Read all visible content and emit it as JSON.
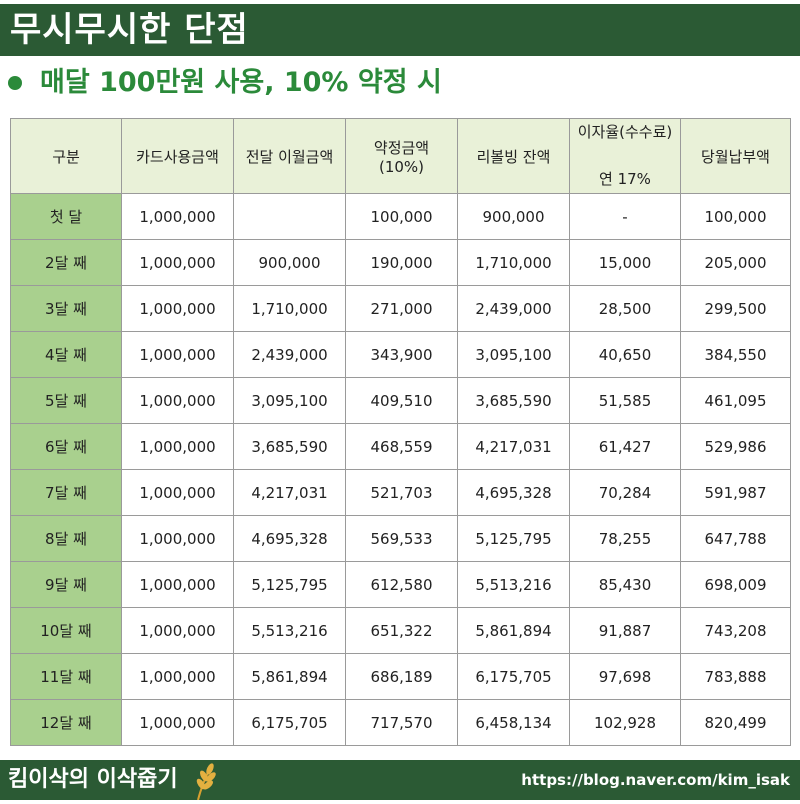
{
  "header": {
    "title": "무시무시한 단점"
  },
  "subtitle": {
    "text": "매달 100만원 사용, 10% 약정 시"
  },
  "table": {
    "columns": {
      "c0": "구분",
      "c1": "카드사용금액",
      "c2": "전달 이월금액",
      "c3a": "약정금액",
      "c3b": "(10%)",
      "c4": "리볼빙 잔액",
      "c5a": "이자율(수수료)",
      "c5b": "연 17%",
      "c6": "당월납부액"
    },
    "rows": [
      [
        "첫 달",
        "1,000,000",
        "",
        "100,000",
        "900,000",
        "-",
        "100,000"
      ],
      [
        "2달 째",
        "1,000,000",
        "900,000",
        "190,000",
        "1,710,000",
        "15,000",
        "205,000"
      ],
      [
        "3달 째",
        "1,000,000",
        "1,710,000",
        "271,000",
        "2,439,000",
        "28,500",
        "299,500"
      ],
      [
        "4달 째",
        "1,000,000",
        "2,439,000",
        "343,900",
        "3,095,100",
        "40,650",
        "384,550"
      ],
      [
        "5달 째",
        "1,000,000",
        "3,095,100",
        "409,510",
        "3,685,590",
        "51,585",
        "461,095"
      ],
      [
        "6달 째",
        "1,000,000",
        "3,685,590",
        "468,559",
        "4,217,031",
        "61,427",
        "529,986"
      ],
      [
        "7달 째",
        "1,000,000",
        "4,217,031",
        "521,703",
        "4,695,328",
        "70,284",
        "591,987"
      ],
      [
        "8달 째",
        "1,000,000",
        "4,695,328",
        "569,533",
        "5,125,795",
        "78,255",
        "647,788"
      ],
      [
        "9달 째",
        "1,000,000",
        "5,125,795",
        "612,580",
        "5,513,216",
        "85,430",
        "698,009"
      ],
      [
        "10달 째",
        "1,000,000",
        "5,513,216",
        "651,322",
        "5,861,894",
        "91,887",
        "743,208"
      ],
      [
        "11달 째",
        "1,000,000",
        "5,861,894",
        "686,189",
        "6,175,705",
        "97,698",
        "783,888"
      ],
      [
        "12달 째",
        "1,000,000",
        "6,175,705",
        "717,570",
        "6,458,134",
        "102,928",
        "820,499"
      ]
    ]
  },
  "footer": {
    "brand": "킴이삭의 이삭줍기",
    "url": "https://blog.naver.com/kim_isak",
    "icon": "wheat-icon"
  },
  "colors": {
    "header_bg": "#2b5a34",
    "accent_green": "#2b8a3a",
    "row_label_bg": "#a9d08e",
    "header_row_bg": "#e9f1d8",
    "wheat": "#d8a030"
  }
}
